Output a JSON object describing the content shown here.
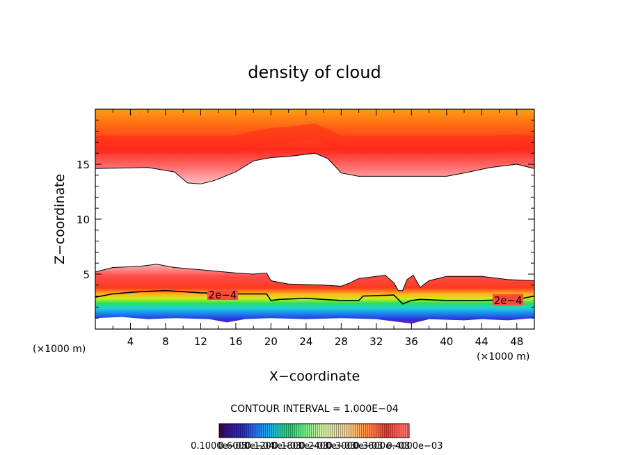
{
  "chart_data": {
    "type": "contour",
    "title": "density of cloud",
    "xlabel": "X−coordinate",
    "ylabel": "Z−coordinate",
    "x_unit_left": "(×1000 m)",
    "x_unit_right": "(×1000 m)",
    "xlim": [
      0,
      50
    ],
    "ylim": [
      0,
      20
    ],
    "x_ticks": [
      4,
      8,
      12,
      16,
      20,
      24,
      28,
      32,
      36,
      40,
      44,
      48
    ],
    "y_ticks": [
      5,
      10,
      15
    ],
    "contour_interval_text": "CONTOUR INTERVAL = 1.000E−04",
    "contour_labels": [
      {
        "text": "2e−4",
        "x": 14.5,
        "z": 3.1
      },
      {
        "text": "2e−4",
        "x": 47,
        "z": 2.6
      }
    ],
    "colorbar_labels": [
      "0.1000e−05",
      "0.6000e−04",
      "0.1200e−03",
      "0.1800e−03",
      "0.2400e−03",
      "0.3000e−03",
      "0.3600e−03",
      "0.4000e−03"
    ],
    "colors": {
      "upper_band": [
        "#ffb8b8",
        "#ff4a3a",
        "#ff2f1f",
        "#ff6a10",
        "#ff9a10"
      ],
      "lower_band": [
        "#8a1fbf",
        "#1a40e0",
        "#22b8f0",
        "#22e070",
        "#d8f010",
        "#ff7a20",
        "#ff3020",
        "#ff5050",
        "#ffc0c0"
      ]
    },
    "upper_cloud_base": [
      [
        0,
        14.6
      ],
      [
        6,
        14.7
      ],
      [
        9,
        14.3
      ],
      [
        10.5,
        13.3
      ],
      [
        12,
        13.2
      ],
      [
        13.5,
        13.5
      ],
      [
        16,
        14.3
      ],
      [
        18,
        15.3
      ],
      [
        20,
        15.6
      ],
      [
        22,
        15.7
      ],
      [
        25,
        16.0
      ],
      [
        26.5,
        15.5
      ],
      [
        28,
        14.2
      ],
      [
        30,
        13.9
      ],
      [
        34,
        13.9
      ],
      [
        40,
        13.9
      ],
      [
        42,
        14.2
      ],
      [
        45,
        14.7
      ],
      [
        48,
        15.0
      ],
      [
        50,
        14.6
      ]
    ],
    "upper_cloud_top": [
      [
        0,
        19.8
      ],
      [
        50,
        19.8
      ]
    ],
    "lower_cloud_top": [
      [
        0,
        5.2
      ],
      [
        2,
        5.6
      ],
      [
        5,
        5.7
      ],
      [
        7,
        5.9
      ],
      [
        9,
        5.6
      ],
      [
        12,
        5.4
      ],
      [
        16,
        5.1
      ],
      [
        18,
        5.0
      ],
      [
        19.5,
        5.1
      ],
      [
        20,
        4.4
      ],
      [
        22,
        4.1
      ],
      [
        26,
        4.0
      ],
      [
        28,
        3.9
      ],
      [
        29,
        4.2
      ],
      [
        30,
        4.6
      ],
      [
        33,
        4.9
      ],
      [
        34,
        4.2
      ],
      [
        34.5,
        3.5
      ],
      [
        35,
        3.5
      ],
      [
        35.5,
        4.5
      ],
      [
        36.2,
        4.9
      ],
      [
        37,
        3.8
      ],
      [
        38,
        4.4
      ],
      [
        40,
        4.8
      ],
      [
        44,
        4.8
      ],
      [
        47,
        4.5
      ],
      [
        50,
        4.4
      ]
    ],
    "lower_cloud_contour_2e4": [
      [
        0,
        2.9
      ],
      [
        2,
        3.2
      ],
      [
        5,
        3.4
      ],
      [
        8,
        3.5
      ],
      [
        12,
        3.3
      ],
      [
        16,
        3.2
      ],
      [
        19.5,
        3.2
      ],
      [
        20,
        2.6
      ],
      [
        21,
        2.7
      ],
      [
        24,
        2.8
      ],
      [
        28,
        2.6
      ],
      [
        30,
        2.6
      ],
      [
        30.5,
        3.0
      ],
      [
        34,
        3.1
      ],
      [
        35,
        2.3
      ],
      [
        36,
        2.6
      ],
      [
        37,
        2.7
      ],
      [
        40,
        2.6
      ],
      [
        44,
        2.6
      ],
      [
        48,
        2.7
      ],
      [
        50,
        3.0
      ]
    ],
    "lower_cloud_base": [
      [
        0,
        1.0
      ],
      [
        3,
        1.1
      ],
      [
        6,
        0.9
      ],
      [
        9,
        1.0
      ],
      [
        13,
        0.9
      ],
      [
        15,
        0.6
      ],
      [
        17,
        0.9
      ],
      [
        20,
        1.0
      ],
      [
        24,
        0.9
      ],
      [
        28,
        1.0
      ],
      [
        32,
        0.9
      ],
      [
        35,
        0.6
      ],
      [
        36,
        0.5
      ],
      [
        38,
        0.9
      ],
      [
        42,
        0.8
      ],
      [
        44,
        0.9
      ],
      [
        47,
        0.8
      ],
      [
        50,
        1.0
      ]
    ]
  }
}
